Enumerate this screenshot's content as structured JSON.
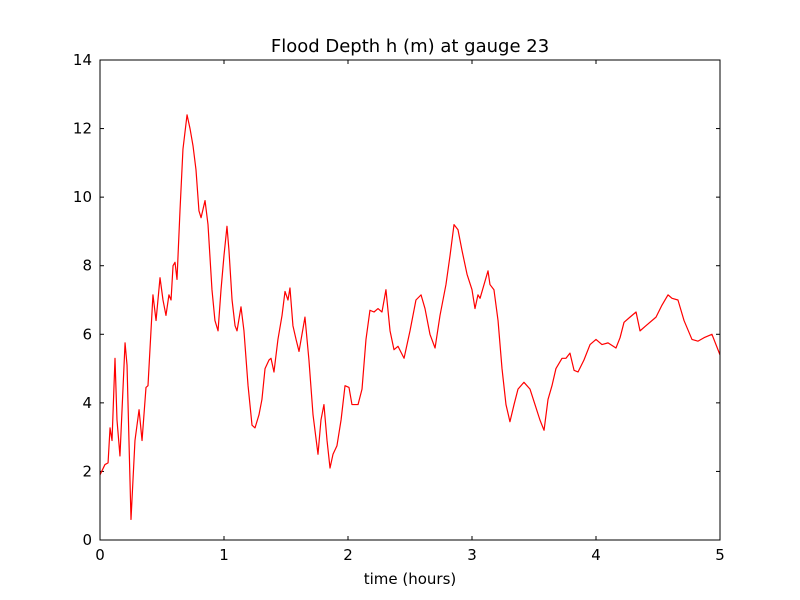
{
  "chart_data": {
    "type": "line",
    "title": "Flood Depth h (m) at gauge 23",
    "xlabel": "time (hours)",
    "color": "#ff0000",
    "x": [
      0,
      0.04,
      0.065,
      0.081,
      0.097,
      0.121,
      0.137,
      0.161,
      0.202,
      0.218,
      0.25,
      0.282,
      0.315,
      0.339,
      0.371,
      0.387,
      0.427,
      0.452,
      0.484,
      0.508,
      0.532,
      0.556,
      0.573,
      0.589,
      0.605,
      0.621,
      0.645,
      0.669,
      0.702,
      0.726,
      0.75,
      0.774,
      0.798,
      0.815,
      0.847,
      0.871,
      0.903,
      0.927,
      0.952,
      0.976,
      1.0,
      1.024,
      1.04,
      1.065,
      1.089,
      1.105,
      1.137,
      1.161,
      1.194,
      1.226,
      1.25,
      1.282,
      1.306,
      1.331,
      1.363,
      1.379,
      1.403,
      1.435,
      1.468,
      1.492,
      1.516,
      1.532,
      1.556,
      1.581,
      1.605,
      1.629,
      1.653,
      1.685,
      1.718,
      1.758,
      1.782,
      1.806,
      1.831,
      1.855,
      1.879,
      1.911,
      1.944,
      1.976,
      2.008,
      2.032,
      2.081,
      2.113,
      2.145,
      2.177,
      2.21,
      2.242,
      2.274,
      2.306,
      2.339,
      2.371,
      2.403,
      2.452,
      2.5,
      2.548,
      2.589,
      2.621,
      2.661,
      2.702,
      2.742,
      2.79,
      2.823,
      2.855,
      2.887,
      2.919,
      2.96,
      3.0,
      3.024,
      3.048,
      3.065,
      3.097,
      3.129,
      3.145,
      3.177,
      3.21,
      3.242,
      3.274,
      3.306,
      3.339,
      3.371,
      3.419,
      3.468,
      3.508,
      3.548,
      3.581,
      3.613,
      3.645,
      3.677,
      3.726,
      3.758,
      3.79,
      3.823,
      3.855,
      3.903,
      3.952,
      4.0,
      4.048,
      4.097,
      4.161,
      4.194,
      4.226,
      4.274,
      4.323,
      4.355,
      4.403,
      4.484,
      4.532,
      4.581,
      4.613,
      4.661,
      4.71,
      4.774,
      4.823,
      4.871,
      4.935,
      5.0
    ],
    "values": [
      1.9,
      2.2,
      2.25,
      3.27,
      2.9,
      5.3,
      3.5,
      2.45,
      5.75,
      5.1,
      0.6,
      2.9,
      3.8,
      2.9,
      4.45,
      4.5,
      7.15,
      6.4,
      7.65,
      7.0,
      6.55,
      7.15,
      7.0,
      8.0,
      8.1,
      7.6,
      9.6,
      11.4,
      12.4,
      12.0,
      11.5,
      10.8,
      9.6,
      9.4,
      9.9,
      9.2,
      7.3,
      6.4,
      6.1,
      7.3,
      8.3,
      9.15,
      8.45,
      7.0,
      6.25,
      6.1,
      6.8,
      6.1,
      4.5,
      3.35,
      3.27,
      3.65,
      4.1,
      5.0,
      5.25,
      5.3,
      4.9,
      5.85,
      6.55,
      7.25,
      7.0,
      7.35,
      6.25,
      5.85,
      5.5,
      6.0,
      6.5,
      5.25,
      3.65,
      2.5,
      3.5,
      3.95,
      2.9,
      2.1,
      2.5,
      2.75,
      3.5,
      4.5,
      4.45,
      3.95,
      3.95,
      4.4,
      5.85,
      6.7,
      6.65,
      6.75,
      6.65,
      7.3,
      6.1,
      5.55,
      5.65,
      5.3,
      6.1,
      7.0,
      7.15,
      6.75,
      6.0,
      5.6,
      6.55,
      7.45,
      8.3,
      9.2,
      9.05,
      8.45,
      7.75,
      7.3,
      6.75,
      7.15,
      7.05,
      7.45,
      7.85,
      7.45,
      7.3,
      6.4,
      5.0,
      3.95,
      3.45,
      3.95,
      4.4,
      4.6,
      4.4,
      3.95,
      3.5,
      3.2,
      4.1,
      4.5,
      5.0,
      5.3,
      5.3,
      5.45,
      4.95,
      4.9,
      5.25,
      5.7,
      5.85,
      5.7,
      5.75,
      5.6,
      5.9,
      6.35,
      6.5,
      6.65,
      6.1,
      6.25,
      6.5,
      6.85,
      7.15,
      7.05,
      7.0,
      6.4,
      5.85,
      5.8,
      5.9,
      6.0,
      5.4
    ],
    "hline": {
      "value": 0,
      "color": "#000000",
      "dashed": true
    },
    "xlim": [
      0,
      5
    ],
    "xticks": [
      0,
      1,
      2,
      3,
      4,
      5
    ],
    "ylim": [
      0,
      14
    ],
    "yticks": [
      0,
      2,
      4,
      6,
      8,
      10,
      12,
      14
    ],
    "grid": false
  }
}
